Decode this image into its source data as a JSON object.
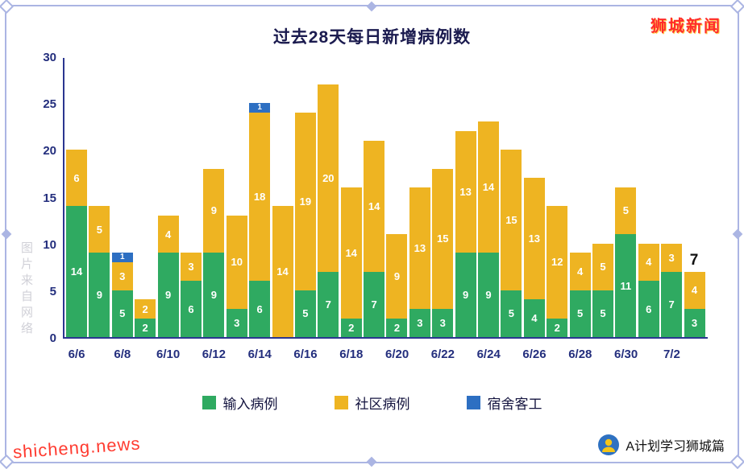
{
  "title": "过去28天每日新增病例数",
  "watermarks": {
    "top_right": "狮城新闻",
    "bottom_left": "shicheng.news",
    "side_vertical": "图片来自网络",
    "bottom_right": "A计划学习狮城篇"
  },
  "chart_data": {
    "type": "bar",
    "stacked": true,
    "title": "过去28天每日新增病例数",
    "xlabel": "",
    "ylabel": "",
    "ylim": [
      0,
      30
    ],
    "yticks": [
      0,
      5,
      10,
      15,
      20,
      25,
      30
    ],
    "grid": false,
    "legend_position": "bottom",
    "categories": [
      "6/6",
      "6/7",
      "6/8",
      "6/9",
      "6/10",
      "6/11",
      "6/12",
      "6/13",
      "6/14",
      "6/15",
      "6/16",
      "6/17",
      "6/18",
      "6/19",
      "6/20",
      "6/21",
      "6/22",
      "6/23",
      "6/24",
      "6/25",
      "6/26",
      "6/27",
      "6/28",
      "6/29",
      "6/30",
      "7/1",
      "7/2",
      "7/3"
    ],
    "x_tick_labels": [
      "6/6",
      "6/8",
      "6/10",
      "6/12",
      "6/14",
      "6/16",
      "6/18",
      "6/20",
      "6/22",
      "6/24",
      "6/26",
      "6/28",
      "6/30",
      "7/2"
    ],
    "series": [
      {
        "name": "输入病例",
        "color": "#2faa61",
        "values": [
          14,
          9,
          5,
          2,
          9,
          6,
          9,
          3,
          6,
          0,
          5,
          7,
          2,
          7,
          2,
          3,
          3,
          9,
          9,
          5,
          4,
          2,
          5,
          5,
          11,
          6,
          7,
          3
        ]
      },
      {
        "name": "社区病例",
        "color": "#eeb422",
        "values": [
          6,
          5,
          3,
          2,
          4,
          3,
          9,
          10,
          18,
          14,
          19,
          20,
          14,
          14,
          9,
          13,
          15,
          13,
          14,
          15,
          13,
          12,
          4,
          5,
          5,
          4,
          3,
          4
        ]
      },
      {
        "name": "宿舍客工",
        "color": "#2d6fc2",
        "values": [
          0,
          0,
          1,
          0,
          0,
          0,
          0,
          0,
          1,
          0,
          0,
          0,
          0,
          0,
          0,
          0,
          0,
          0,
          0,
          0,
          0,
          0,
          0,
          0,
          0,
          0,
          0,
          0
        ]
      }
    ],
    "last_bar_total": 7,
    "last_bar_total_label": "7"
  },
  "legend": [
    {
      "label": "输入病例",
      "color": "#2faa61"
    },
    {
      "label": "社区病例",
      "color": "#eeb422"
    },
    {
      "label": "宿舍客工",
      "color": "#2d6fc2"
    }
  ],
  "style_colors": {
    "axis": "#2b3690",
    "axis_text": "#232e7d",
    "title_text": "#1b1b4f",
    "watermark_red": "#ff2a2a"
  }
}
